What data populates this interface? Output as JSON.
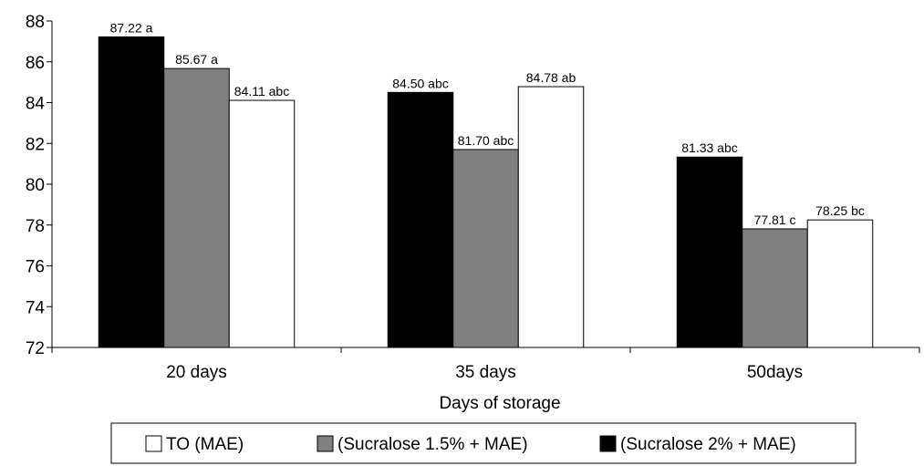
{
  "chart_data": {
    "type": "bar",
    "title": "",
    "xlabel": "Days of storage",
    "ylabel": "",
    "ylim": [
      72,
      88
    ],
    "yticks": [
      72,
      74,
      76,
      78,
      80,
      82,
      84,
      86,
      88
    ],
    "grid": false,
    "legend_position": "bottom",
    "categories": [
      "20 days",
      "35 days",
      "50days"
    ],
    "series": [
      {
        "name": "(Sucralose 2% + MAE)",
        "color": "#000000",
        "values": [
          87.22,
          84.5,
          81.33
        ],
        "labels": [
          "87.22 a",
          "84.50 abc",
          "81.33 abc"
        ]
      },
      {
        "name": "(Sucralose 1.5% + MAE)",
        "color": "#808080",
        "values": [
          85.67,
          81.7,
          77.81
        ],
        "labels": [
          "85.67 a",
          "81.70 abc",
          "77.81 c"
        ]
      },
      {
        "name": "TO (MAE)",
        "color": "#ffffff",
        "values": [
          84.11,
          84.78,
          78.25
        ],
        "labels": [
          "84.11 abc",
          "84.78 ab",
          "78.25 bc"
        ]
      }
    ],
    "legend_order": [
      2,
      1,
      0
    ]
  }
}
